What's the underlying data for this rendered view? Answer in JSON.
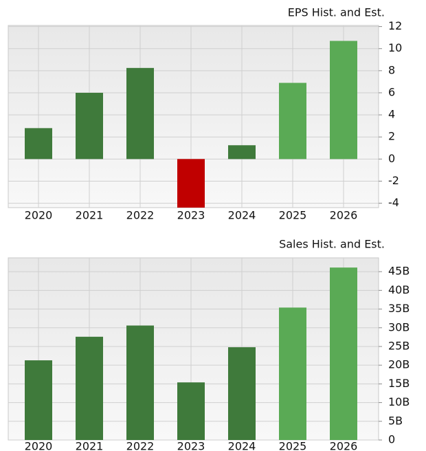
{
  "chart_data": [
    {
      "type": "bar",
      "title": "EPS Hist. and Est.",
      "categories": [
        "2020",
        "2021",
        "2022",
        "2023",
        "2024",
        "2025",
        "2026"
      ],
      "values": [
        2.8,
        6.0,
        8.25,
        -4.4,
        1.25,
        6.9,
        10.7
      ],
      "colors": [
        "#3f7a3b",
        "#3f7a3b",
        "#3f7a3b",
        "#c00000",
        "#3f7a3b",
        "#5aaa55",
        "#5aaa55"
      ],
      "ylim": [
        -4.4,
        12.1
      ],
      "yticks": [
        -4,
        -2,
        0,
        2,
        4,
        6,
        8,
        10,
        12
      ],
      "grid": true
    },
    {
      "type": "bar",
      "title": "Sales Hist. and Est.",
      "categories": [
        "2020",
        "2021",
        "2022",
        "2023",
        "2024",
        "2025",
        "2026"
      ],
      "values": [
        21.3,
        27.6,
        30.6,
        15.4,
        24.8,
        35.4,
        46.1
      ],
      "colors": [
        "#3f7a3b",
        "#3f7a3b",
        "#3f7a3b",
        "#3f7a3b",
        "#3f7a3b",
        "#5aaa55",
        "#5aaa55"
      ],
      "ylim": [
        0,
        48.7
      ],
      "yticks": [
        0,
        {
          "value": 5,
          "label": "5B"
        },
        {
          "value": 10,
          "label": "10B"
        },
        {
          "value": 15,
          "label": "15B"
        },
        {
          "value": 20,
          "label": "20B"
        },
        {
          "value": 25,
          "label": "25B"
        },
        {
          "value": 30,
          "label": "30B"
        },
        {
          "value": 35,
          "label": "35B"
        },
        {
          "value": 40,
          "label": "40B"
        },
        {
          "value": 45,
          "label": "45B"
        }
      ],
      "grid": true
    }
  ]
}
